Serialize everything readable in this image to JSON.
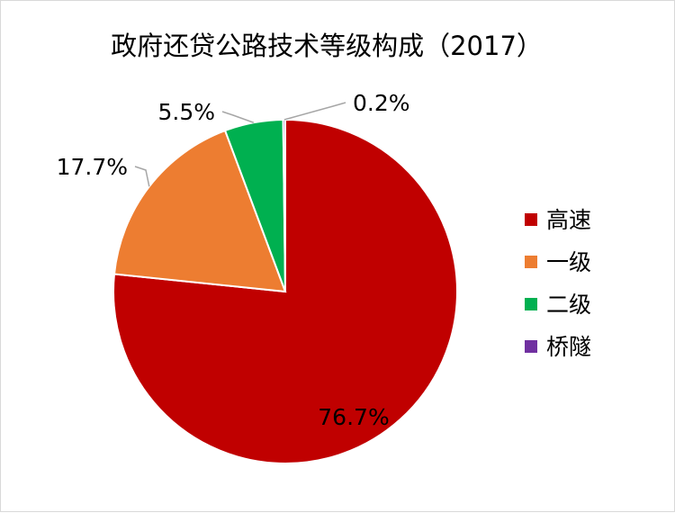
{
  "chart_data": {
    "type": "pie",
    "title": "政府还贷公路技术等级构成（2017）",
    "categories": [
      "高速",
      "一级",
      "二级",
      "桥隧"
    ],
    "values": [
      76.7,
      17.7,
      5.5,
      0.2
    ],
    "value_labels": [
      "76.7%",
      "17.7%",
      "5.5%",
      "0.2%"
    ],
    "colors": [
      "#c00000",
      "#ed7d31",
      "#00b050",
      "#7030a0"
    ],
    "start_angle_deg": 0,
    "direction": "clockwise",
    "legend_position": "right"
  }
}
